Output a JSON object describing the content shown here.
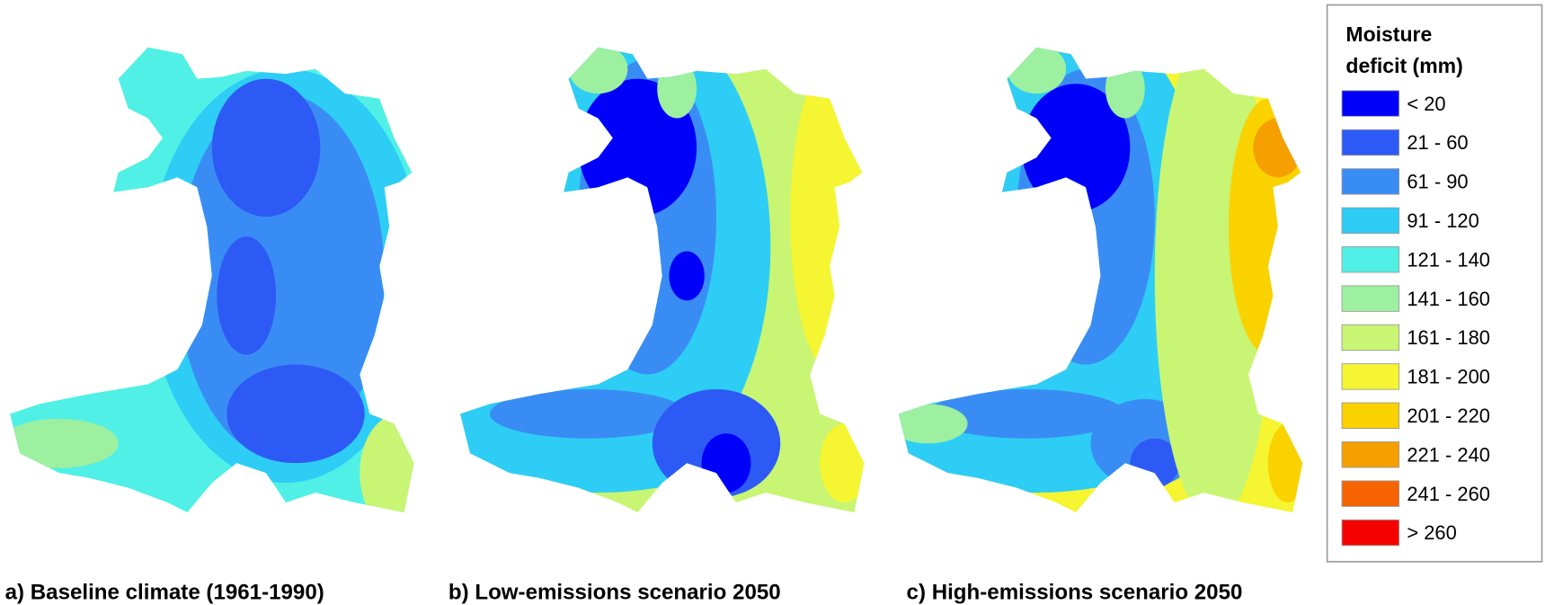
{
  "legend": {
    "title_lines": [
      "Moisture",
      "deficit (mm)"
    ],
    "items": [
      {
        "label": "< 20",
        "color": "#0000fa"
      },
      {
        "label": "21 - 60",
        "color": "#2d5af5"
      },
      {
        "label": "61 - 90",
        "color": "#3a8cf5"
      },
      {
        "label": "91 - 120",
        "color": "#2ecdf5"
      },
      {
        "label": "121 - 140",
        "color": "#50f0e6"
      },
      {
        "label": "141 - 160",
        "color": "#9cf0a0"
      },
      {
        "label": "161 - 180",
        "color": "#c8f573"
      },
      {
        "label": "181 - 200",
        "color": "#f5f532"
      },
      {
        "label": "201 - 220",
        "color": "#fad200"
      },
      {
        "label": "221 - 240",
        "color": "#f5a000"
      },
      {
        "label": "241 - 260",
        "color": "#f56400"
      },
      {
        "label": "> 260",
        "color": "#f50000"
      }
    ]
  },
  "maps": [
    {
      "caption": "a) Baseline climate (1961-1990)"
    },
    {
      "caption": "b) Low-emissions scenario 2050"
    },
    {
      "caption": "c) High-emissions scenario 2050"
    }
  ]
}
